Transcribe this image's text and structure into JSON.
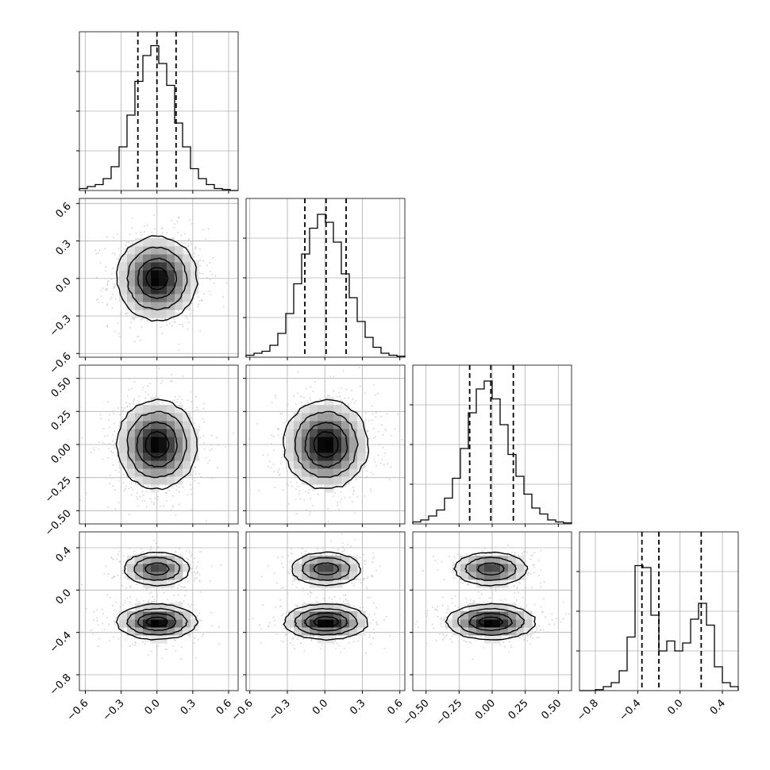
{
  "chart_data": {
    "type": "corner",
    "grid": true,
    "parameters": [
      {
        "index": 0,
        "ticks": [
          -0.6,
          -0.3,
          0.0,
          0.3,
          0.6
        ],
        "tick_labels": [
          "−0.6",
          "−0.3",
          "0.0",
          "0.3",
          "0.6"
        ],
        "range": [
          -0.65,
          0.68
        ],
        "quantiles": [
          -0.16,
          0.0,
          0.16
        ]
      },
      {
        "index": 1,
        "ticks": [
          -0.6,
          -0.3,
          0.0,
          0.3,
          0.6
        ],
        "tick_labels": [
          "−0.6",
          "−0.3",
          "0.0",
          "0.3",
          "0.6"
        ],
        "range": [
          -0.63,
          0.64
        ],
        "quantiles": [
          -0.16,
          0.01,
          0.17
        ]
      },
      {
        "index": 2,
        "ticks": [
          -0.5,
          -0.25,
          0.0,
          0.25,
          0.5
        ],
        "tick_labels": [
          "−0.50",
          "−0.25",
          "0.00",
          "0.25",
          "0.50"
        ],
        "range": [
          -0.6,
          0.6
        ],
        "quantiles": [
          -0.17,
          -0.01,
          0.16
        ]
      },
      {
        "index": 3,
        "ticks": [
          -0.8,
          -0.4,
          0.0,
          0.4
        ],
        "tick_labels": [
          "−0.8",
          "−0.4",
          "0.0",
          "0.4"
        ],
        "range": [
          -0.95,
          0.55
        ],
        "quantiles": [
          -0.36,
          -0.2,
          0.2
        ]
      }
    ],
    "histograms": [
      {
        "param": 0,
        "ymax": 0.8,
        "values": [
          0.01,
          0.02,
          0.03,
          0.06,
          0.12,
          0.22,
          0.38,
          0.55,
          0.68,
          0.73,
          0.64,
          0.53,
          0.34,
          0.22,
          0.11,
          0.06,
          0.03,
          0.01,
          0.005,
          0.0
        ]
      },
      {
        "param": 1,
        "ymax": 0.8,
        "values": [
          0.01,
          0.02,
          0.03,
          0.06,
          0.12,
          0.22,
          0.37,
          0.52,
          0.65,
          0.72,
          0.68,
          0.58,
          0.42,
          0.3,
          0.18,
          0.1,
          0.05,
          0.02,
          0.01,
          0.005
        ]
      },
      {
        "param": 2,
        "ymax": 0.8,
        "values": [
          0.01,
          0.02,
          0.04,
          0.07,
          0.13,
          0.23,
          0.38,
          0.56,
          0.68,
          0.72,
          0.63,
          0.5,
          0.35,
          0.24,
          0.15,
          0.08,
          0.05,
          0.02,
          0.01,
          0.005
        ]
      },
      {
        "param": 3,
        "ymax": 0.8,
        "values": [
          0.0,
          0.0,
          0.005,
          0.02,
          0.04,
          0.1,
          0.27,
          0.63,
          0.62,
          0.38,
          0.2,
          0.25,
          0.2,
          0.24,
          0.36,
          0.44,
          0.33,
          0.12,
          0.04,
          0.02
        ]
      }
    ],
    "pairs": [
      {
        "x": 0,
        "y": 1,
        "modes": [
          {
            "cx": 0.0,
            "cy": 0.0,
            "sx": 0.16,
            "sy": 0.16,
            "w": 1.0
          }
        ]
      },
      {
        "x": 0,
        "y": 2,
        "modes": [
          {
            "cx": 0.0,
            "cy": 0.0,
            "sx": 0.16,
            "sy": 0.16,
            "w": 1.0
          }
        ]
      },
      {
        "x": 1,
        "y": 2,
        "modes": [
          {
            "cx": 0.01,
            "cy": 0.0,
            "sx": 0.16,
            "sy": 0.16,
            "w": 1.0
          }
        ]
      },
      {
        "x": 0,
        "y": 3,
        "modes": [
          {
            "cx": 0.0,
            "cy": -0.3,
            "sx": 0.16,
            "sy": 0.08,
            "w": 0.6
          },
          {
            "cx": 0.0,
            "cy": 0.2,
            "sx": 0.14,
            "sy": 0.08,
            "w": 0.4
          }
        ]
      },
      {
        "x": 1,
        "y": 3,
        "modes": [
          {
            "cx": 0.01,
            "cy": -0.3,
            "sx": 0.16,
            "sy": 0.08,
            "w": 0.6
          },
          {
            "cx": 0.01,
            "cy": 0.2,
            "sx": 0.14,
            "sy": 0.08,
            "w": 0.4
          }
        ]
      },
      {
        "x": 2,
        "y": 3,
        "modes": [
          {
            "cx": -0.01,
            "cy": -0.3,
            "sx": 0.16,
            "sy": 0.08,
            "w": 0.6
          },
          {
            "cx": -0.01,
            "cy": 0.2,
            "sx": 0.14,
            "sy": 0.08,
            "w": 0.4
          }
        ]
      }
    ],
    "colors": {
      "line": "#000000",
      "grid": "#b0b0b0",
      "points": "#d0d0d0"
    }
  }
}
